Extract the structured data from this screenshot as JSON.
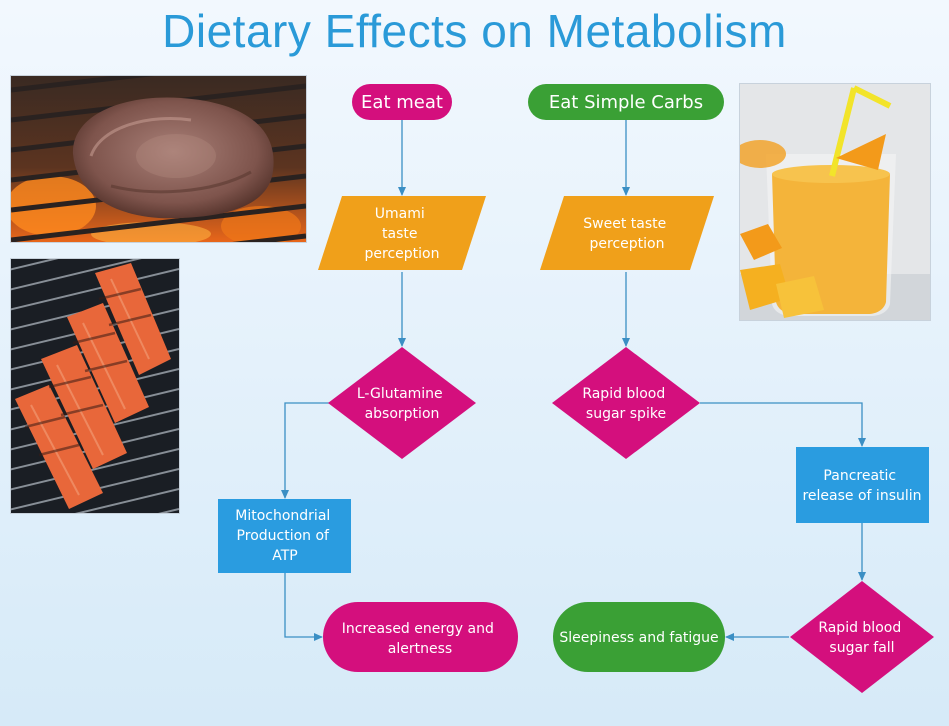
{
  "title": "Dietary Effects on Metabolism",
  "colors": {
    "title": "#2a9ad8",
    "magenta": "#d40f7d",
    "green": "#3aa035",
    "orange": "#f0a01a",
    "blue": "#2a9ce0",
    "arrow": "#3b8fc4"
  },
  "photos": {
    "steak": "grilled-steak-photo",
    "salmon": "grilled-salmon-photo",
    "smoothie": "mango-smoothie-photo"
  },
  "nodes": {
    "eat_meat": "Eat meat",
    "eat_carbs": "Eat Simple Carbs",
    "umami": [
      "Umami",
      "taste",
      "perception"
    ],
    "sweet": [
      "Sweet taste",
      "perception"
    ],
    "glutamine": [
      "L-Glutamine",
      "absorption"
    ],
    "spike": [
      "Rapid blood",
      "sugar spike"
    ],
    "mito": [
      "Mitochondrial",
      "Production of",
      "ATP"
    ],
    "insulin": [
      "Pancreatic",
      "release of insulin"
    ],
    "energy": [
      "Increased energy and",
      "alertness"
    ],
    "sleepiness": [
      "Sleepiness and fatigue"
    ],
    "fall": [
      "Rapid blood",
      "sugar fall"
    ]
  }
}
